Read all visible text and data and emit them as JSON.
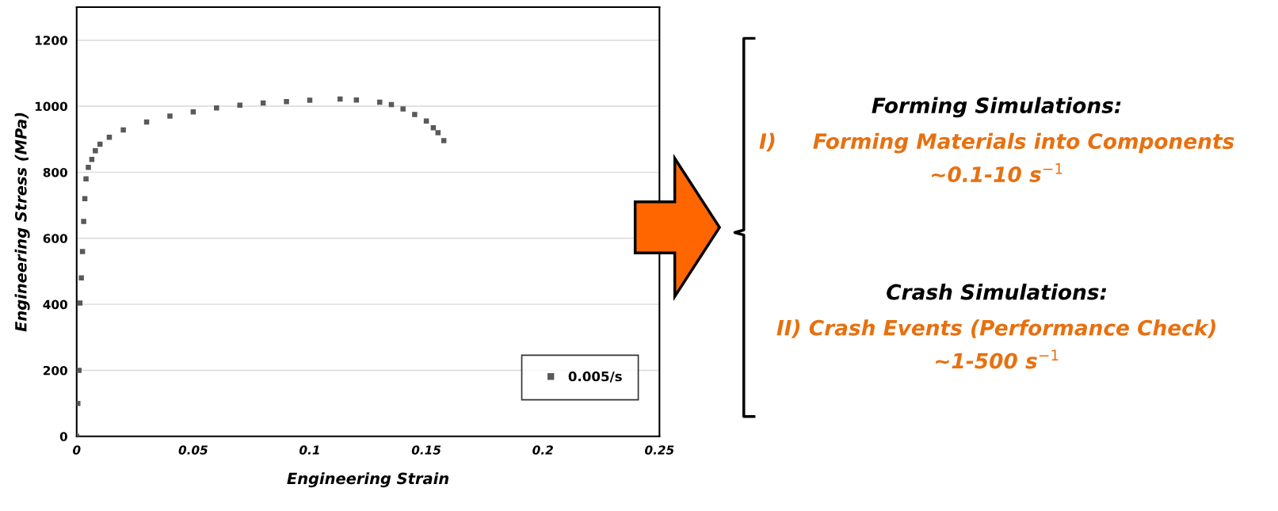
{
  "chart_data": {
    "type": "scatter",
    "xlabel": "Engineering Strain",
    "ylabel": "Engineering Stress (MPa)",
    "x": [
      0,
      0.0005,
      0.001,
      0.0014,
      0.002,
      0.0025,
      0.003,
      0.0035,
      0.004,
      0.005,
      0.0065,
      0.008,
      0.01,
      0.014,
      0.02,
      0.03,
      0.04,
      0.05,
      0.06,
      0.07,
      0.08,
      0.09,
      0.1,
      0.113,
      0.12,
      0.13,
      0.135,
      0.14,
      0.145,
      0.15,
      0.153,
      0.155,
      0.1575
    ],
    "series": [
      {
        "name": "0.005/s",
        "color": "#595959",
        "values": [
          0,
          100,
          200,
          404,
          480,
          560,
          651,
          720,
          780,
          815,
          839,
          865,
          885,
          906,
          928,
          952,
          970,
          983,
          995,
          1003,
          1010,
          1014,
          1018,
          1022,
          1019,
          1012,
          1005,
          992,
          975,
          955,
          935,
          920,
          896
        ]
      }
    ],
    "xlim": [
      0,
      0.25
    ],
    "xticks": [
      0,
      0.05,
      0.1,
      0.15,
      0.2,
      0.25
    ],
    "ylim": [
      0,
      1300
    ],
    "yticks": [
      0,
      200,
      400,
      600,
      800,
      1000,
      1200
    ],
    "grid": "y",
    "legend": "bottom right",
    "marker": "square",
    "annotations": [
      "Forming Simulations:",
      "I)     Forming Materials into Components",
      "~0.1-10 s$^{−1}$",
      "Crash Simulations:",
      "II) Crash Events (Performance Check)",
      "~1-500 s$^{−1}$"
    ]
  }
}
